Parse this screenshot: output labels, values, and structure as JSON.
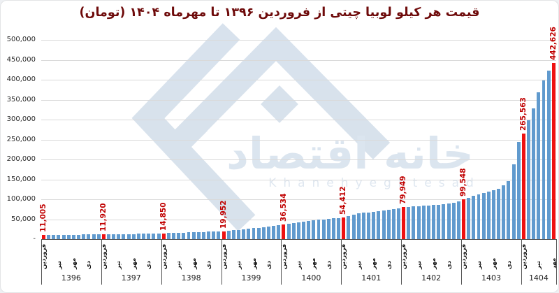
{
  "title": "قیمت هر کیلو لوبیا چیتی از فروردین ۱۳۹۶ تا مهرماه ۱۴۰۴ (تومان)",
  "watermark": {
    "persian": "خانه اقتصاد",
    "latin": "Khanehyeghtesad",
    "color": "#bfd0e2"
  },
  "colors": {
    "bar": "#609ace",
    "highlight": "#ee1111",
    "annotation_text": "#c00000",
    "title": "#6e0a0a",
    "gridline": "#d9d9d9",
    "axis": "#595959"
  },
  "chart_data": {
    "type": "bar",
    "title": "قیمت هر کیلو لوبیا چیتی از فروردین ۱۳۹۶ تا مهرماه ۱۴۰۴ (تومان)",
    "xlabel": "",
    "ylabel": "",
    "ylim": [
      0,
      500000
    ],
    "grid": true,
    "legend": "none",
    "y_ticks": [
      {
        "label": "500,000",
        "value": 500000
      },
      {
        "label": "450,000",
        "value": 450000
      },
      {
        "label": "400,000",
        "value": 400000
      },
      {
        "label": "350,000",
        "value": 350000
      },
      {
        "label": "300,000",
        "value": 300000
      },
      {
        "label": "250,000",
        "value": 250000
      },
      {
        "label": "200,000",
        "value": 200000
      },
      {
        "label": "150,000",
        "value": 150000
      },
      {
        "label": "100,000",
        "value": 100000
      },
      {
        "label": "50,000",
        "value": 50000
      },
      {
        "label": "-",
        "value": 0
      }
    ],
    "month_tick_positions": [
      {
        "index": 0,
        "label": "فروردین"
      },
      {
        "index": 3,
        "label": "تیر"
      },
      {
        "index": 6,
        "label": "مهر"
      },
      {
        "index": 9,
        "label": "دی"
      }
    ],
    "years": [
      {
        "year": "1396",
        "values": [
          11005,
          11100,
          11150,
          11200,
          11250,
          11300,
          11350,
          11400,
          11450,
          11550,
          11650,
          11800
        ],
        "annotations": [
          {
            "month": 0,
            "label": "11,005"
          }
        ]
      },
      {
        "year": "1397",
        "values": [
          11920,
          12100,
          12300,
          12500,
          12700,
          12900,
          13100,
          13350,
          13600,
          13900,
          14200,
          14550
        ],
        "annotations": [
          {
            "month": 0,
            "label": "11,920"
          }
        ]
      },
      {
        "year": "1398",
        "values": [
          14850,
          15250,
          15650,
          16050,
          16450,
          16850,
          17250,
          17700,
          18150,
          18650,
          19150,
          19600
        ],
        "annotations": [
          {
            "month": 0,
            "label": "14,850"
          }
        ]
      },
      {
        "year": "1399",
        "values": [
          19952,
          21000,
          22200,
          23500,
          24800,
          26100,
          27400,
          28700,
          30000,
          31400,
          32800,
          34500
        ],
        "annotations": [
          {
            "month": 0,
            "label": "19,952"
          }
        ]
      },
      {
        "year": "1400",
        "values": [
          36534,
          38200,
          40000,
          41800,
          43500,
          45200,
          46800,
          48300,
          49700,
          50800,
          51800,
          53000
        ],
        "annotations": [
          {
            "month": 0,
            "label": "36,534"
          }
        ]
      },
      {
        "year": "1401",
        "values": [
          54412,
          58500,
          62000,
          64500,
          66000,
          67500,
          69000,
          70500,
          72000,
          73500,
          75000,
          77200
        ],
        "annotations": [
          {
            "month": 0,
            "label": "54,412"
          }
        ]
      },
      {
        "year": "1402",
        "values": [
          79949,
          81200,
          82300,
          83300,
          84200,
          85000,
          85800,
          86700,
          87800,
          89500,
          92000,
          95500
        ],
        "annotations": [
          {
            "month": 0,
            "label": "79,949"
          }
        ]
      },
      {
        "year": "1403",
        "values": [
          99548,
          104000,
          108500,
          113000,
          116500,
          119500,
          122500,
          127000,
          135000,
          146000,
          188000,
          243000
        ],
        "annotations": [
          {
            "month": 0,
            "label": "99,548"
          }
        ]
      },
      {
        "year": "1404",
        "values": [
          265563,
          298000,
          328000,
          368000,
          398000,
          422000,
          442626
        ],
        "annotations": [
          {
            "month": 0,
            "label": "265,563"
          },
          {
            "month": 6,
            "label": "442,626"
          }
        ]
      }
    ]
  }
}
